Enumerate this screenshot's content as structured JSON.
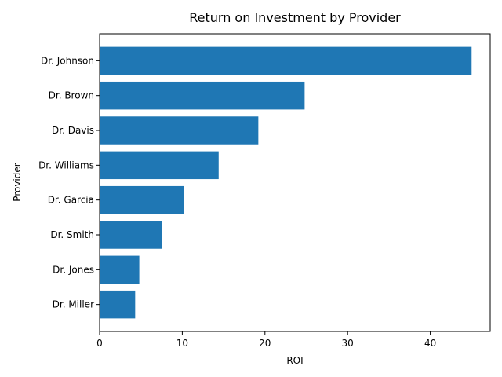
{
  "chart_data": {
    "type": "bar",
    "orientation": "horizontal",
    "title": "Return on Investment by Provider",
    "xlabel": "ROI",
    "ylabel": "Provider",
    "categories": [
      "Dr. Miller",
      "Dr. Jones",
      "Dr. Smith",
      "Dr. Garcia",
      "Dr. Williams",
      "Dr. Davis",
      "Dr. Brown",
      "Dr. Johnson"
    ],
    "values": [
      4.3,
      4.8,
      7.5,
      10.2,
      14.4,
      19.2,
      24.8,
      45.0
    ],
    "xlim": [
      0,
      47.25
    ],
    "xticks": [
      0,
      10,
      20,
      30,
      40
    ],
    "bar_color": "#1f77b4",
    "grid": false,
    "legend": "none"
  }
}
